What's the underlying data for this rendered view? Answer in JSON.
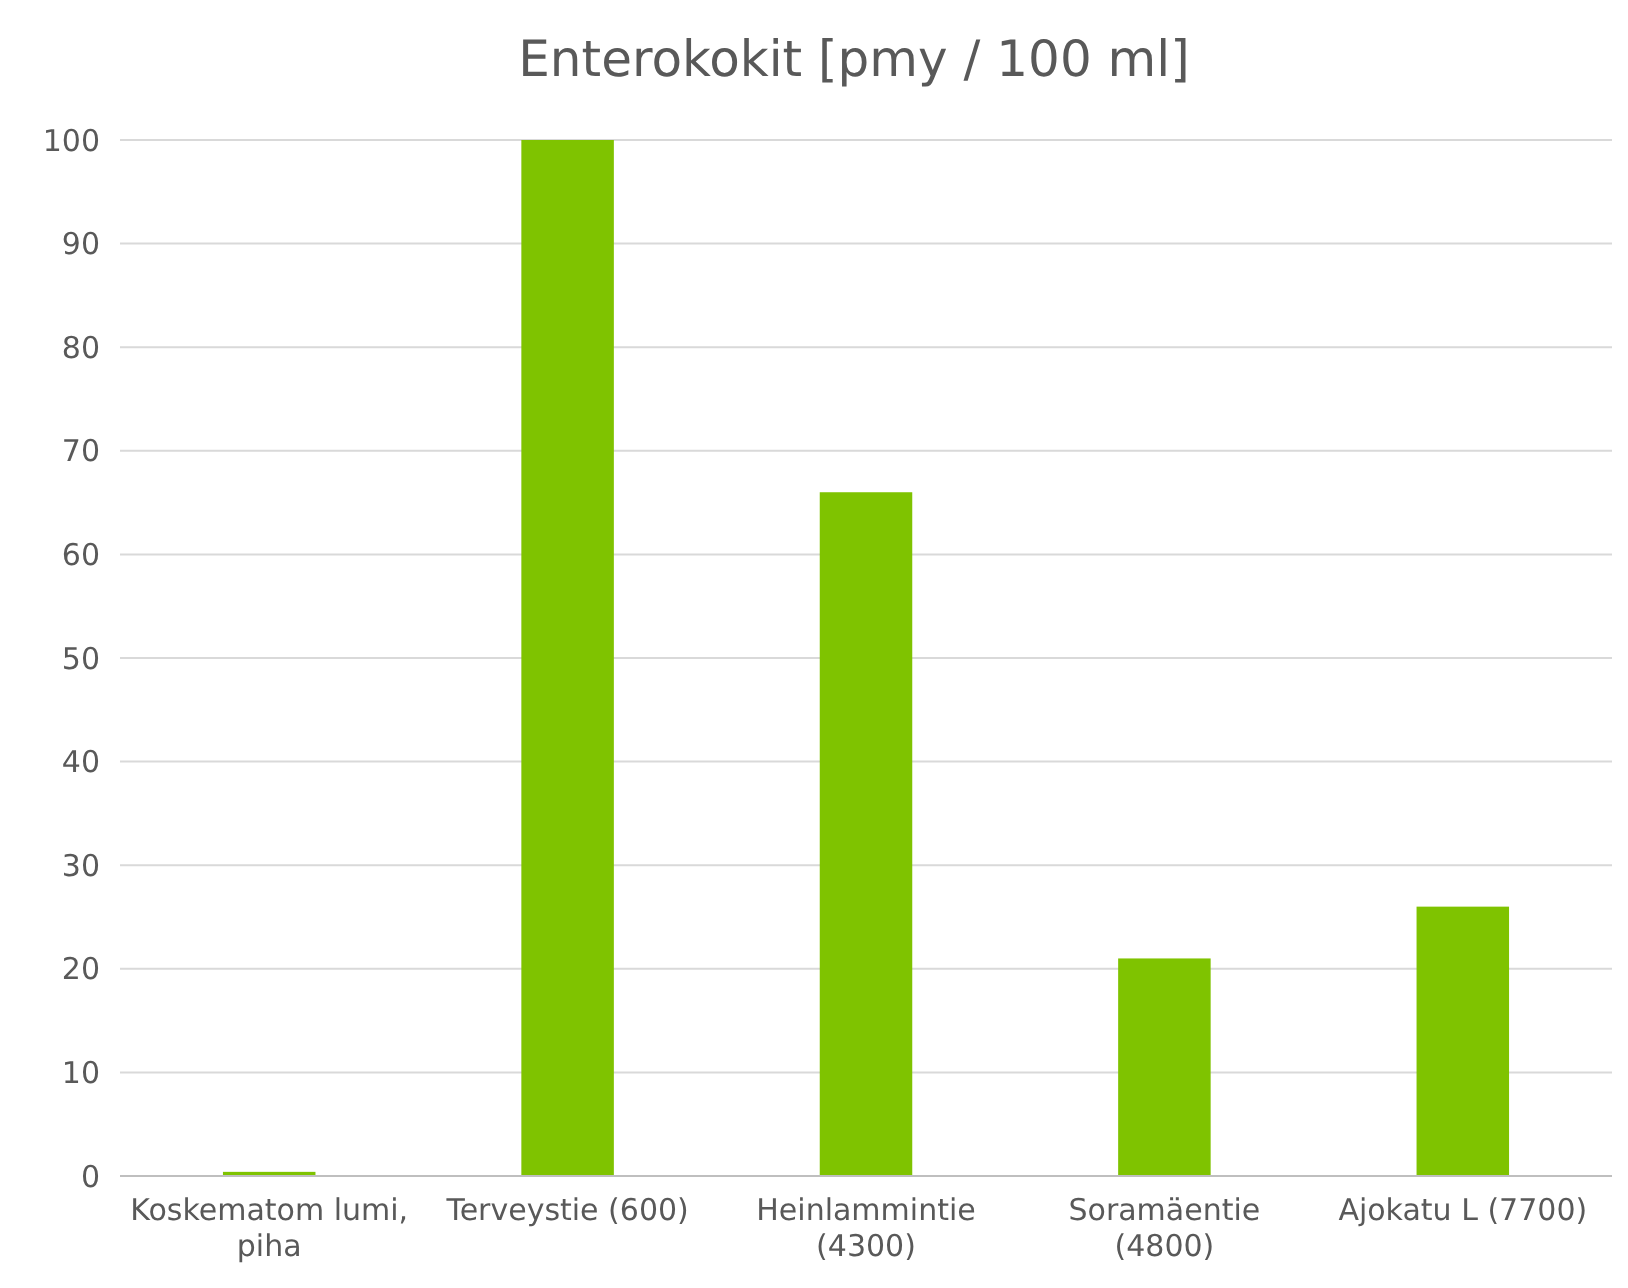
{
  "chart_data": {
    "type": "bar",
    "title": "Enterokokit [pmy / 100 ml]",
    "categories": [
      "Koskematom lumi, piha",
      "Terveystie (600)",
      "Heinlammintie (4300)",
      "Soramäentie (4800)",
      "Ajokatu L (7700)"
    ],
    "values": [
      0.4,
      100,
      66,
      21,
      26
    ],
    "color": "#7fc300",
    "ylim": [
      0,
      100
    ],
    "yticks": [
      0,
      10,
      20,
      30,
      40,
      50,
      60,
      70,
      80,
      90,
      100
    ],
    "grid": "y"
  }
}
